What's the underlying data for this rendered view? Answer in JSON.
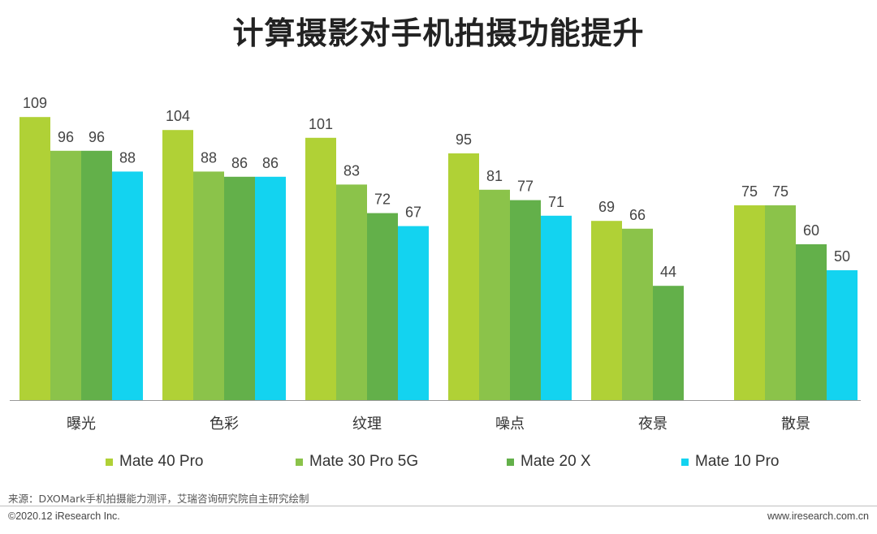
{
  "title": "计算摄影对手机拍摄功能提升",
  "chart_data": {
    "type": "bar",
    "title": "计算摄影对手机拍摄功能提升",
    "xlabel": "",
    "ylabel": "",
    "grid": false,
    "legend_position": "bottom",
    "ylim": [
      0,
      115
    ],
    "categories": [
      "曝光",
      "色彩",
      "纹理",
      "噪点",
      "夜景",
      "散景"
    ],
    "series": [
      {
        "name": "Mate 40 Pro",
        "color": "#b0d136",
        "values": [
          109,
          104,
          101,
          95,
          69,
          75
        ]
      },
      {
        "name": "Mate 30 Pro 5G",
        "color": "#8bc34a",
        "values": [
          96,
          88,
          83,
          81,
          66,
          75
        ]
      },
      {
        "name": "Mate 20 X",
        "color": "#63b04a",
        "values": [
          96,
          86,
          72,
          77,
          44,
          60
        ]
      },
      {
        "name": "Mate 10 Pro",
        "color": "#13d3f0",
        "values": [
          88,
          86,
          67,
          71,
          null,
          50
        ]
      }
    ]
  },
  "footer": {
    "source": "来源：DXOMark手机拍摄能力测评，艾瑞咨询研究院自主研究绘制",
    "copyright": "©2020.12 iResearch Inc.",
    "website": "www.iresearch.com.cn"
  }
}
